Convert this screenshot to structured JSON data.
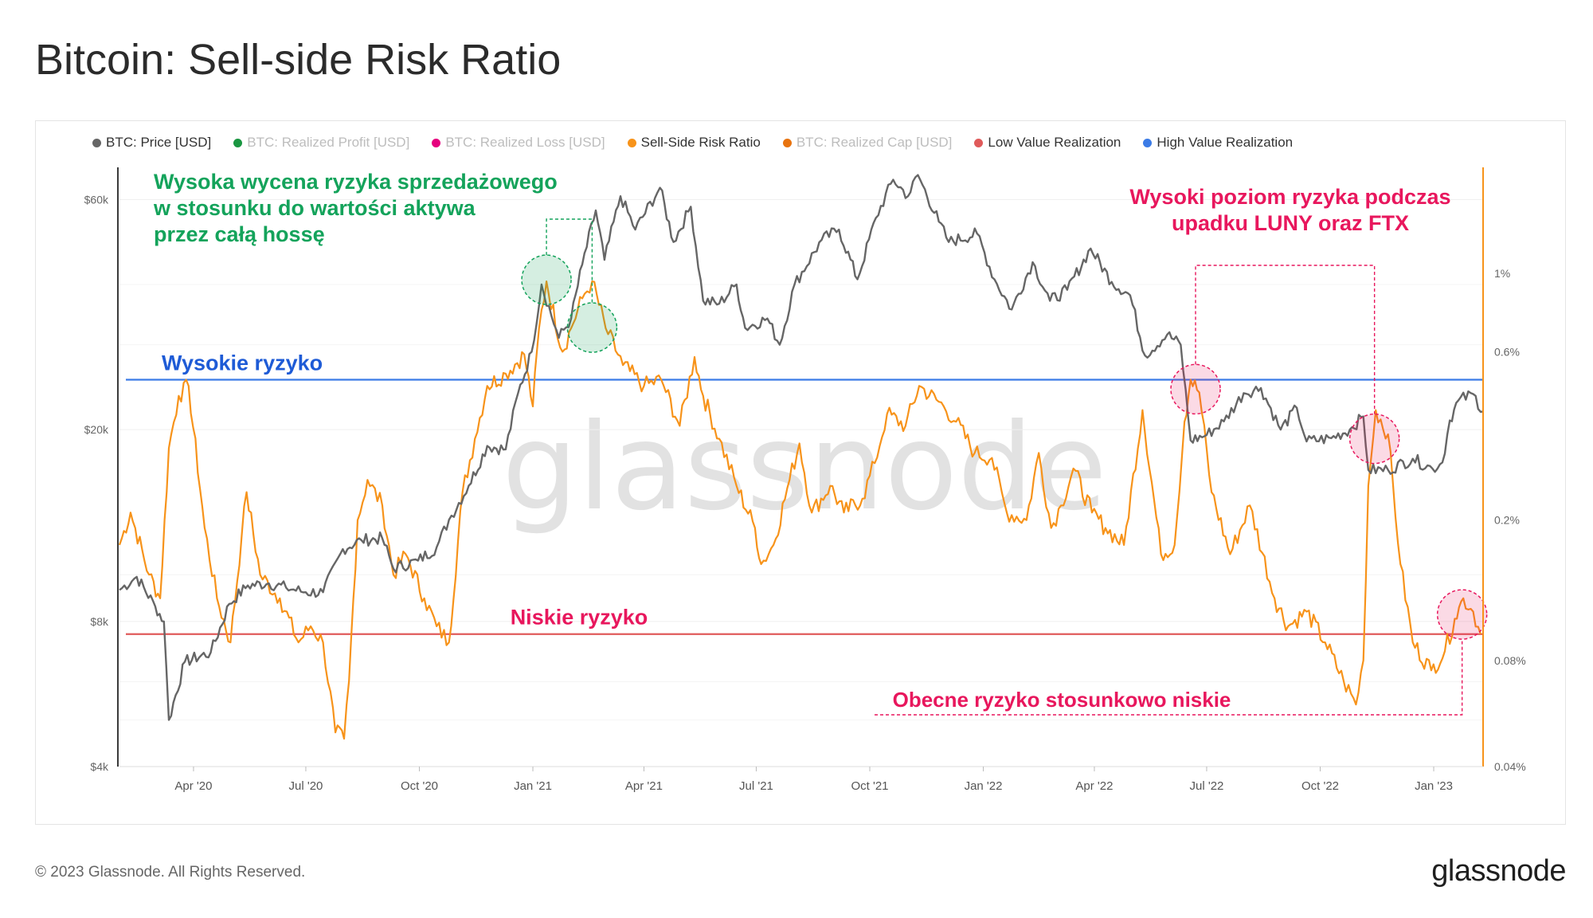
{
  "title": "Bitcoin: Sell-side Risk Ratio",
  "legend": [
    {
      "label": "BTC: Price [USD]",
      "color": "#666666",
      "active": true
    },
    {
      "label": "BTC: Realized Profit [USD]",
      "color": "#1a9641",
      "active": false
    },
    {
      "label": "BTC: Realized Loss [USD]",
      "color": "#e6007e",
      "active": false
    },
    {
      "label": "Sell-Side Risk Ratio",
      "color": "#f7931a",
      "active": true
    },
    {
      "label": "BTC: Realized Cap [USD]",
      "color": "#e8730e",
      "active": false
    },
    {
      "label": "Low Value Realization",
      "color": "#e05a5a",
      "active": true
    },
    {
      "label": "High Value Realization",
      "color": "#3b7be6",
      "active": true
    }
  ],
  "watermark": "glassnode",
  "annotations": {
    "high_valuation": [
      "Wysoka wycena ryzyka sprzedażowego",
      "w stosunku do wartości aktywa",
      "przez całą hossę"
    ],
    "luna_ftx": [
      "Wysoki poziom ryzyka podczas",
      "upadku LUNY oraz FTX"
    ],
    "high_risk": "Wysokie ryzyko",
    "low_risk": "Niskie ryzyko",
    "current_low": "Obecne ryzyko stosunkowo niskie"
  },
  "footer": {
    "copyright": "© 2023 Glassnode. All Rights Reserved.",
    "logo": "glassnode"
  },
  "colors": {
    "price": "#666666",
    "ssr": "#f7931a",
    "high_line": "#3b7be6",
    "low_line": "#e05a5a",
    "green": "#14a35b",
    "pink": "#e8175d"
  },
  "chart_data": {
    "type": "line",
    "x_axis": {
      "range": [
        "2020-02-01",
        "2023-02-10"
      ],
      "ticks": [
        "Apr '20",
        "Jul '20",
        "Oct '20",
        "Jan '21",
        "Apr '21",
        "Jul '21",
        "Oct '21",
        "Jan '22",
        "Apr '22",
        "Jul '22",
        "Oct '22",
        "Jan '23"
      ],
      "tick_dates": [
        "2020-04-01",
        "2020-07-01",
        "2020-10-01",
        "2021-01-01",
        "2021-04-01",
        "2021-07-01",
        "2021-10-01",
        "2022-01-01",
        "2022-04-01",
        "2022-07-01",
        "2022-10-01",
        "2023-01-01"
      ]
    },
    "y_left": {
      "scale": "log",
      "range": [
        4000,
        70000
      ],
      "ticks": [
        "$4k",
        "$8k",
        "$20k",
        "$60k"
      ],
      "tick_values": [
        4000,
        8000,
        20000,
        60000
      ]
    },
    "y_right": {
      "scale": "log",
      "range": [
        0.04,
        2.0
      ],
      "ticks": [
        "0.04%",
        "0.08%",
        "0.2%",
        "0.6%",
        "1%"
      ],
      "tick_values": [
        0.04,
        0.08,
        0.2,
        0.6,
        1.0
      ]
    },
    "thresholds": {
      "high_value_realization": 0.5,
      "low_value_realization": 0.095
    },
    "series": [
      {
        "name": "BTC: Price [USD]",
        "axis": "left",
        "points": [
          [
            "2020-02-01",
            9300
          ],
          [
            "2020-02-15",
            9900
          ],
          [
            "2020-03-01",
            8600
          ],
          [
            "2020-03-08",
            8000
          ],
          [
            "2020-03-12",
            5000
          ],
          [
            "2020-03-25",
            6600
          ],
          [
            "2020-04-15",
            6900
          ],
          [
            "2020-04-30",
            8700
          ],
          [
            "2020-05-15",
            9500
          ],
          [
            "2020-06-01",
            9600
          ],
          [
            "2020-06-15",
            9400
          ],
          [
            "2020-07-01",
            9200
          ],
          [
            "2020-07-15",
            9200
          ],
          [
            "2020-07-31",
            11300
          ],
          [
            "2020-08-15",
            11800
          ],
          [
            "2020-09-01",
            11900
          ],
          [
            "2020-09-10",
            10300
          ],
          [
            "2020-09-30",
            10700
          ],
          [
            "2020-10-15",
            11400
          ],
          [
            "2020-10-25",
            13000
          ],
          [
            "2020-11-10",
            15300
          ],
          [
            "2020-11-25",
            18500
          ],
          [
            "2020-12-10",
            18200
          ],
          [
            "2020-12-20",
            23800
          ],
          [
            "2020-12-31",
            29000
          ],
          [
            "2021-01-08",
            40000
          ],
          [
            "2021-01-22",
            31000
          ],
          [
            "2021-02-01",
            34000
          ],
          [
            "2021-02-10",
            44000
          ],
          [
            "2021-02-21",
            57000
          ],
          [
            "2021-02-28",
            45000
          ],
          [
            "2021-03-13",
            61000
          ],
          [
            "2021-03-25",
            52000
          ],
          [
            "2021-04-14",
            63500
          ],
          [
            "2021-04-25",
            49000
          ],
          [
            "2021-05-09",
            58000
          ],
          [
            "2021-05-19",
            37000
          ],
          [
            "2021-06-01",
            36500
          ],
          [
            "2021-06-15",
            40000
          ],
          [
            "2021-06-22",
            32500
          ],
          [
            "2021-07-10",
            34000
          ],
          [
            "2021-07-20",
            30000
          ],
          [
            "2021-08-01",
            40000
          ],
          [
            "2021-08-23",
            49500
          ],
          [
            "2021-09-06",
            52000
          ],
          [
            "2021-09-21",
            41000
          ],
          [
            "2021-10-06",
            55000
          ],
          [
            "2021-10-20",
            66000
          ],
          [
            "2021-11-01",
            61000
          ],
          [
            "2021-11-09",
            67500
          ],
          [
            "2021-11-26",
            54000
          ],
          [
            "2021-12-04",
            49000
          ],
          [
            "2021-12-27",
            51000
          ],
          [
            "2022-01-10",
            41000
          ],
          [
            "2022-01-24",
            35500
          ],
          [
            "2022-02-10",
            44500
          ],
          [
            "2022-02-24",
            37000
          ],
          [
            "2022-03-10",
            39000
          ],
          [
            "2022-03-29",
            47500
          ],
          [
            "2022-04-15",
            40500
          ],
          [
            "2022-04-30",
            38000
          ],
          [
            "2022-05-12",
            28500
          ],
          [
            "2022-05-30",
            31500
          ],
          [
            "2022-06-10",
            30000
          ],
          [
            "2022-06-18",
            19000
          ],
          [
            "2022-07-01",
            19500
          ],
          [
            "2022-07-15",
            20800
          ],
          [
            "2022-07-31",
            23800
          ],
          [
            "2022-08-14",
            24400
          ],
          [
            "2022-08-30",
            20000
          ],
          [
            "2022-09-12",
            22200
          ],
          [
            "2022-09-20",
            18900
          ],
          [
            "2022-10-10",
            19200
          ],
          [
            "2022-10-25",
            20000
          ],
          [
            "2022-11-05",
            21300
          ],
          [
            "2022-11-09",
            16500
          ],
          [
            "2022-11-25",
            16500
          ],
          [
            "2022-12-15",
            17400
          ],
          [
            "2022-12-31",
            16600
          ],
          [
            "2023-01-08",
            17100
          ],
          [
            "2023-01-14",
            20900
          ],
          [
            "2023-01-21",
            23000
          ],
          [
            "2023-02-02",
            23700
          ],
          [
            "2023-02-10",
            21800
          ]
        ]
      },
      {
        "name": "Sell-Side Risk Ratio",
        "axis": "right",
        "points": [
          [
            "2020-02-01",
            0.17
          ],
          [
            "2020-02-10",
            0.21
          ],
          [
            "2020-02-25",
            0.14
          ],
          [
            "2020-03-05",
            0.12
          ],
          [
            "2020-03-12",
            0.32
          ],
          [
            "2020-03-20",
            0.45
          ],
          [
            "2020-03-28",
            0.48
          ],
          [
            "2020-04-10",
            0.19
          ],
          [
            "2020-04-20",
            0.12
          ],
          [
            "2020-05-01",
            0.09
          ],
          [
            "2020-05-10",
            0.18
          ],
          [
            "2020-05-14",
            0.24
          ],
          [
            "2020-05-25",
            0.14
          ],
          [
            "2020-06-10",
            0.12
          ],
          [
            "2020-06-25",
            0.09
          ],
          [
            "2020-07-05",
            0.1
          ],
          [
            "2020-07-15",
            0.09
          ],
          [
            "2020-07-25",
            0.05
          ],
          [
            "2020-08-01",
            0.048
          ],
          [
            "2020-08-05",
            0.07
          ],
          [
            "2020-08-12",
            0.2
          ],
          [
            "2020-08-20",
            0.26
          ],
          [
            "2020-09-01",
            0.22
          ],
          [
            "2020-09-10",
            0.14
          ],
          [
            "2020-09-20",
            0.16
          ],
          [
            "2020-10-05",
            0.12
          ],
          [
            "2020-10-15",
            0.1
          ],
          [
            "2020-10-25",
            0.09
          ],
          [
            "2020-11-05",
            0.24
          ],
          [
            "2020-11-15",
            0.34
          ],
          [
            "2020-11-25",
            0.48
          ],
          [
            "2020-12-10",
            0.52
          ],
          [
            "2020-12-25",
            0.59
          ],
          [
            "2021-01-01",
            0.42
          ],
          [
            "2021-01-06",
            0.7
          ],
          [
            "2021-01-12",
            0.95
          ],
          [
            "2021-01-25",
            0.6
          ],
          [
            "2021-02-01",
            0.7
          ],
          [
            "2021-02-10",
            0.85
          ],
          [
            "2021-02-18",
            0.95
          ],
          [
            "2021-03-01",
            0.7
          ],
          [
            "2021-03-15",
            0.55
          ],
          [
            "2021-04-01",
            0.48
          ],
          [
            "2021-04-15",
            0.5
          ],
          [
            "2021-04-30",
            0.37
          ],
          [
            "2021-05-12",
            0.58
          ],
          [
            "2021-05-19",
            0.45
          ],
          [
            "2021-06-01",
            0.34
          ],
          [
            "2021-06-15",
            0.25
          ],
          [
            "2021-06-30",
            0.19
          ],
          [
            "2021-07-05",
            0.15
          ],
          [
            "2021-07-15",
            0.17
          ],
          [
            "2021-07-28",
            0.26
          ],
          [
            "2021-08-05",
            0.33
          ],
          [
            "2021-08-15",
            0.21
          ],
          [
            "2021-08-30",
            0.25
          ],
          [
            "2021-09-10",
            0.21
          ],
          [
            "2021-09-25",
            0.23
          ],
          [
            "2021-10-05",
            0.29
          ],
          [
            "2021-10-15",
            0.4
          ],
          [
            "2021-10-30",
            0.37
          ],
          [
            "2021-11-10",
            0.48
          ],
          [
            "2021-11-30",
            0.42
          ],
          [
            "2021-12-10",
            0.38
          ],
          [
            "2021-12-25",
            0.31
          ],
          [
            "2022-01-08",
            0.3
          ],
          [
            "2022-01-20",
            0.21
          ],
          [
            "2022-02-05",
            0.2
          ],
          [
            "2022-02-15",
            0.31
          ],
          [
            "2022-02-25",
            0.19
          ],
          [
            "2022-03-05",
            0.22
          ],
          [
            "2022-03-15",
            0.28
          ],
          [
            "2022-03-30",
            0.21
          ],
          [
            "2022-04-10",
            0.19
          ],
          [
            "2022-04-25",
            0.17
          ],
          [
            "2022-05-10",
            0.41
          ],
          [
            "2022-05-25",
            0.16
          ],
          [
            "2022-06-05",
            0.17
          ],
          [
            "2022-06-13",
            0.38
          ],
          [
            "2022-06-18",
            0.5
          ],
          [
            "2022-06-25",
            0.46
          ],
          [
            "2022-07-05",
            0.24
          ],
          [
            "2022-07-20",
            0.16
          ],
          [
            "2022-08-05",
            0.22
          ],
          [
            "2022-08-25",
            0.12
          ],
          [
            "2022-09-05",
            0.1
          ],
          [
            "2022-09-20",
            0.11
          ],
          [
            "2022-10-05",
            0.09
          ],
          [
            "2022-10-20",
            0.07
          ],
          [
            "2022-10-30",
            0.06
          ],
          [
            "2022-11-05",
            0.08
          ],
          [
            "2022-11-09",
            0.25
          ],
          [
            "2022-11-15",
            0.41
          ],
          [
            "2022-11-25",
            0.35
          ],
          [
            "2022-12-05",
            0.15
          ],
          [
            "2022-12-15",
            0.09
          ],
          [
            "2022-12-30",
            0.075
          ],
          [
            "2023-01-10",
            0.085
          ],
          [
            "2023-01-18",
            0.105
          ],
          [
            "2023-01-25",
            0.12
          ],
          [
            "2023-02-02",
            0.11
          ],
          [
            "2023-02-08",
            0.095
          ]
        ]
      }
    ]
  }
}
